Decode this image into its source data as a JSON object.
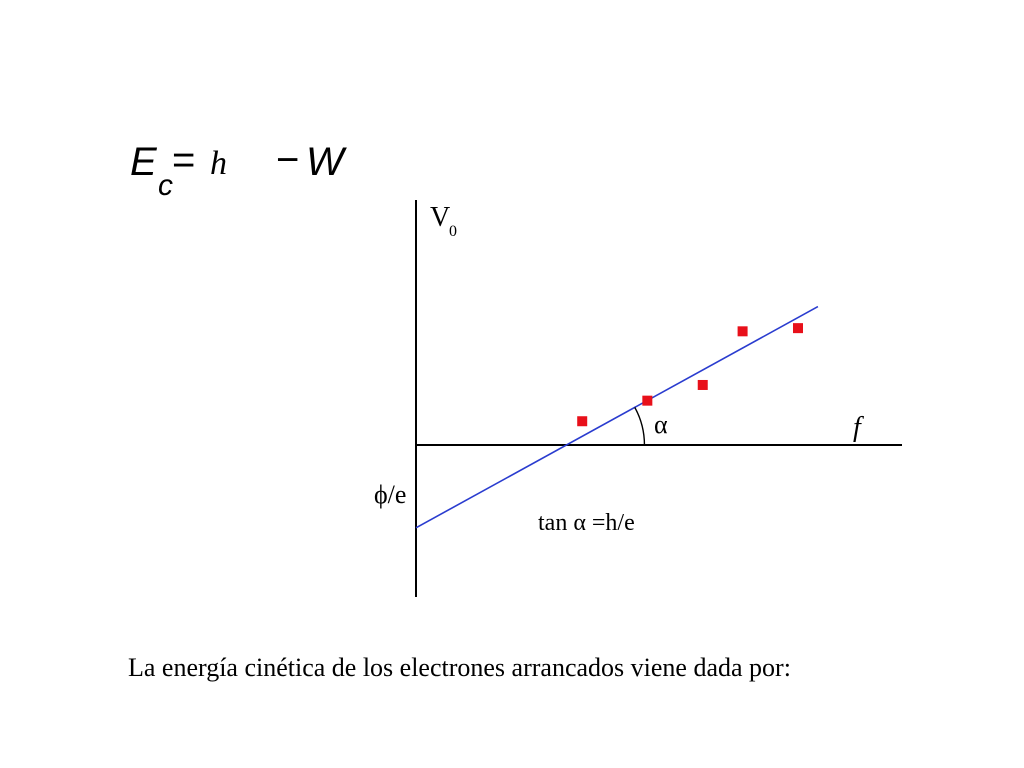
{
  "formula": {
    "E": "E",
    "sub": "c",
    "eq": "=",
    "h": "h",
    "minus": "−",
    "W": "W"
  },
  "caption": "La energía cinética de los electrones arrancados viene dada por:",
  "chart_data": {
    "type": "scatter",
    "ylabel": "V",
    "ylabel_sub": "0",
    "xlabel": "f",
    "intercept_label": "ϕ/e",
    "angle_label": "α",
    "slope_label": "tan α =h/e",
    "colors": {
      "points": "#e8101a",
      "line": "#2a3ccf",
      "axes": "#000000"
    },
    "x_range": [
      0,
      1
    ],
    "y_range": [
      -0.65,
      1.0
    ],
    "points": [
      {
        "x": 0.342,
        "y": 0.097
      },
      {
        "x": 0.476,
        "y": 0.181
      },
      {
        "x": 0.59,
        "y": 0.245
      },
      {
        "x": 0.672,
        "y": 0.464
      },
      {
        "x": 0.786,
        "y": 0.477
      }
    ],
    "fit_line": {
      "x0": 0.0,
      "y0": -0.338,
      "x1": 0.827,
      "y1": 0.565
    }
  }
}
